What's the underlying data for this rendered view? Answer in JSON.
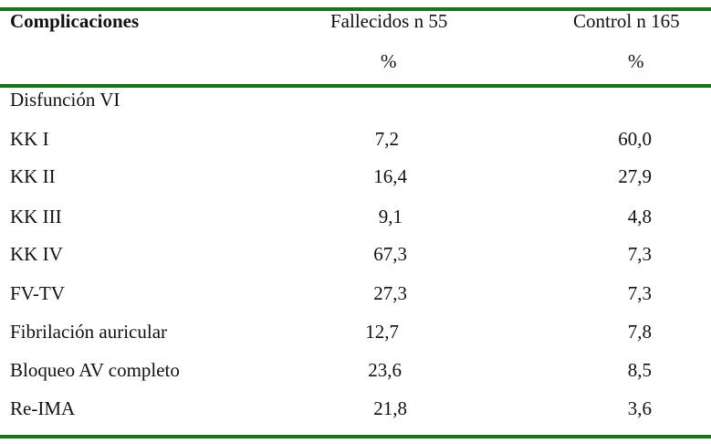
{
  "header": {
    "col0": "Complicaciones",
    "col1": "Fallecidos n 55",
    "col2": "Control n 165",
    "unit1": "%",
    "unit2": "%"
  },
  "section": "Disfunción VI",
  "rows": [
    {
      "label": "KK I",
      "fallecidos": "7,2",
      "control": "60,0"
    },
    {
      "label": "KK II",
      "fallecidos": "16,4",
      "control": "27,9"
    },
    {
      "label": "KK III",
      "fallecidos": "9,1",
      "control": "4,8"
    },
    {
      "label": "KK IV",
      "fallecidos": "67,3",
      "control": "7,3"
    },
    {
      "label": "FV-TV",
      "fallecidos": "27,3",
      "control": "7,3"
    },
    {
      "label": "Fibrilación auricular",
      "fallecidos": "12,7",
      "control": "7,8"
    },
    {
      "label": "Bloqueo AV completo",
      "fallecidos": "23,6",
      "control": "8,5"
    },
    {
      "label": "Re-IMA",
      "fallecidos": "21,8",
      "control": "3,6"
    }
  ],
  "colors": {
    "rule": "#167516"
  }
}
